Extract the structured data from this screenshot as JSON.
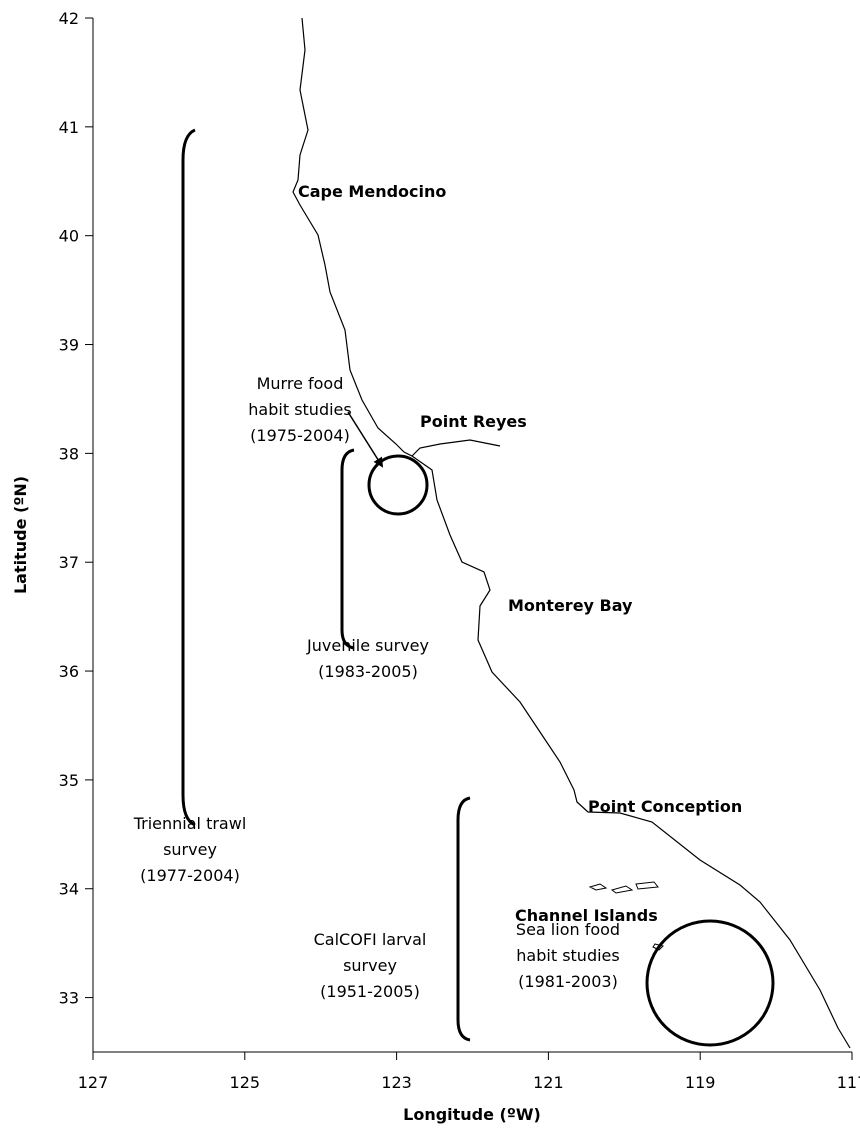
{
  "chart_data": {
    "type": "map",
    "x_label": "Longitude (ºW)",
    "y_label": "Latitude (ºN)",
    "xlim": [
      127,
      117
    ],
    "ylim": [
      32.5,
      42
    ],
    "xticks": [
      127,
      125,
      123,
      121,
      119,
      117
    ],
    "yticks": [
      33,
      34,
      35,
      36,
      37,
      38,
      39,
      40,
      41,
      42
    ],
    "places": [
      "Cape Mendocino",
      "Point Reyes",
      "Monterey Bay",
      "Point Conception",
      "Channel Islands"
    ],
    "surveys": [
      {
        "lines": [
          "Murre food",
          "habit studies",
          "(1975-2004)"
        ]
      },
      {
        "lines": [
          "Juvenile survey",
          "(1983-2005)"
        ]
      },
      {
        "lines": [
          "Triennial trawl",
          "survey",
          "(1977-2004)"
        ]
      },
      {
        "lines": [
          "CalCOFI larval",
          "survey",
          "(1951-2005)"
        ]
      },
      {
        "lines": [
          "Sea lion food",
          "habit studies",
          "(1981-2003)"
        ]
      }
    ]
  }
}
